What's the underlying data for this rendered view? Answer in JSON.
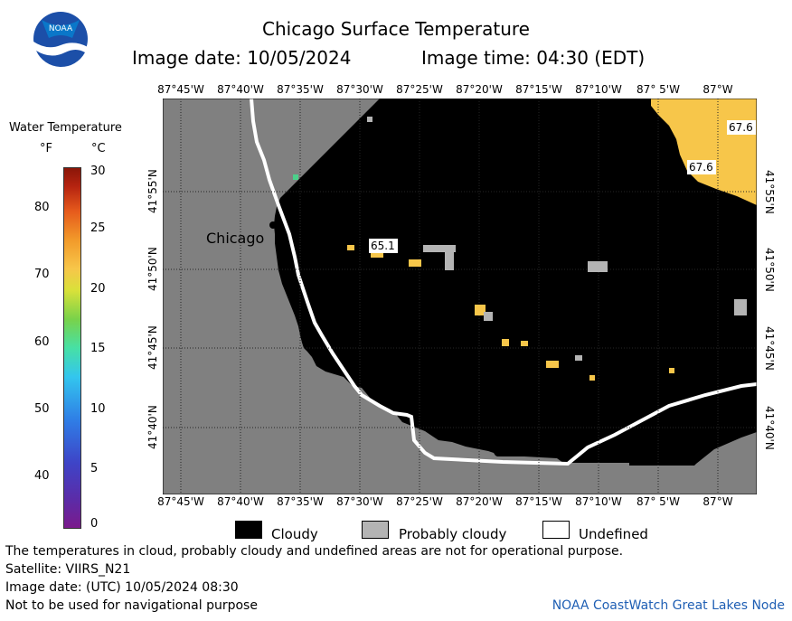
{
  "header": {
    "title": "Chicago Surface Temperature",
    "image_date": "Image date: 10/05/2024",
    "image_time": "Image time: 04:30 (EDT)",
    "logo_text": "NOAA"
  },
  "colorbar": {
    "title": "Water Temperature",
    "unit_f": "°F",
    "unit_c": "°C",
    "f_ticks": [
      "80",
      "70",
      "60",
      "50",
      "40"
    ],
    "c_ticks": [
      "30",
      "25",
      "20",
      "15",
      "10",
      "5",
      "0"
    ]
  },
  "map": {
    "lon_labels": [
      "87°45'W",
      "87°40'W",
      "87°35'W",
      "87°30'W",
      "87°25'W",
      "87°20'W",
      "87°15'W",
      "87°10'W",
      "87° 5'W",
      "87°W"
    ],
    "lat_labels": [
      "41°55'N",
      "41°50'N",
      "41°45'N",
      "41°40'N"
    ],
    "city_label": "Chicago",
    "temps": [
      "67.6",
      "67.6",
      "65.1"
    ],
    "colors": {
      "land": "#808080",
      "cloud": "#000000",
      "probably_cloudy": "#b4b4b4",
      "undefined": "#ffffff",
      "warm": "#f7c64a",
      "grid": "#202020"
    }
  },
  "legend": {
    "cloudy": "Cloudy",
    "probably_cloudy": "Probably cloudy",
    "undefined": "Undefined"
  },
  "footer": {
    "note": "The temperatures in cloud, probably cloudy and undefined areas are not for operational purpose.",
    "satellite": "Satellite: VIIRS_N21",
    "utc_date": "Image date: (UTC) 10/05/2024  08:30",
    "nav": "Not to be used for navigational purpose",
    "credit": "NOAA CoastWatch Great Lakes Node"
  }
}
